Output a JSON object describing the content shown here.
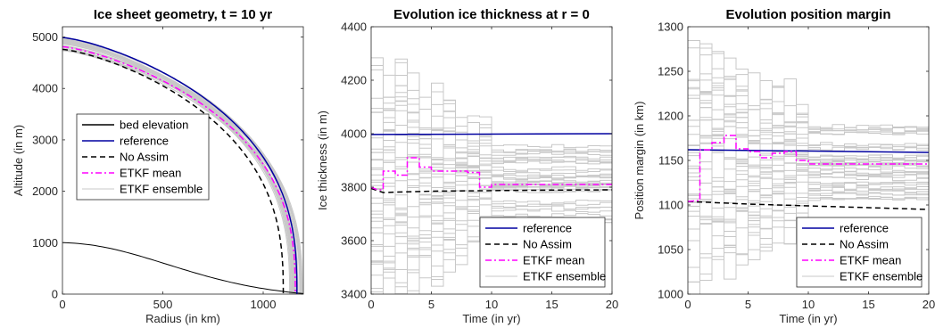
{
  "chart_data": [
    {
      "type": "line",
      "title": "Ice sheet geometry, t = 10 yr",
      "xlabel": "Radius (in km)",
      "ylabel": "Altitude (in m)",
      "xlim": [
        0,
        1200
      ],
      "ylim": [
        0,
        5200
      ],
      "xticks": [
        "0",
        "500",
        "1000"
      ],
      "yticks": [
        "0",
        "1000",
        "2000",
        "3000",
        "4000",
        "5000"
      ],
      "grid": false,
      "legend": {
        "placement": "center-left"
      },
      "series": [
        {
          "name": "bed elevation",
          "color": "#000000",
          "style": "solid",
          "kind": "bed",
          "H0": 1000,
          "R": 1200
        },
        {
          "name": "reference",
          "color": "#0000a0",
          "style": "solid",
          "kind": "profile",
          "H0": 4990,
          "R": 1168
        },
        {
          "name": "No Assim",
          "color": "#000000",
          "style": "dashed",
          "kind": "profile",
          "H0": 4760,
          "R": 1100
        },
        {
          "name": "ETKF mean",
          "color": "#ff00ff",
          "style": "dashdot",
          "kind": "profile",
          "H0": 4810,
          "R": 1160
        },
        {
          "name": "ETKF ensemble",
          "color": "#c8c8c8",
          "style": "solid",
          "kind": "ensemble",
          "H0_range": [
            4700,
            5000
          ],
          "R_range": [
            1130,
            1195
          ],
          "members": 30
        }
      ]
    },
    {
      "type": "line",
      "title": "Evolution ice thickness at r = 0",
      "xlabel": "Time (in yr)",
      "ylabel": "Ice thickness (in m)",
      "xlim": [
        0,
        20
      ],
      "ylim": [
        3400,
        4400
      ],
      "xticks": [
        "0",
        "5",
        "10",
        "15",
        "20"
      ],
      "yticks": [
        "3400",
        "3600",
        "3800",
        "4000",
        "4200",
        "4400"
      ],
      "grid": false,
      "legend": {
        "placement": "bottom-right"
      },
      "series": [
        {
          "name": "reference",
          "color": "#0000a0",
          "style": "solid",
          "x": [
            0,
            20
          ],
          "y": [
            3997,
            4000
          ]
        },
        {
          "name": "No Assim",
          "color": "#000000",
          "style": "dashed",
          "x": [
            0,
            1,
            5,
            10,
            15,
            20
          ],
          "y": [
            3795,
            3780,
            3785,
            3787,
            3789,
            3790
          ]
        },
        {
          "name": "ETKF mean",
          "color": "#ff00ff",
          "style": "dashdot",
          "x": [
            0,
            0.5,
            0.5,
            1,
            1,
            2,
            2,
            3,
            3,
            4,
            4,
            5,
            5,
            8,
            8,
            9,
            9,
            10,
            10,
            20
          ],
          "y": [
            3800,
            3790,
            3790,
            3790,
            3860,
            3860,
            3845,
            3845,
            3910,
            3910,
            3875,
            3875,
            3860,
            3860,
            3855,
            3855,
            3800,
            3800,
            3810,
            3810
          ]
        },
        {
          "name": "ETKF ensemble",
          "color": "#c8c8c8",
          "style": "solid",
          "kind": "ensemble",
          "center": 3810,
          "spread_start": 390,
          "spread_end": 150,
          "members": 40
        }
      ]
    },
    {
      "type": "line",
      "title": "Evolution position margin",
      "xlabel": "Time (in yr)",
      "ylabel": "Position margin (in km)",
      "xlim": [
        0,
        20
      ],
      "ylim": [
        1000,
        1300
      ],
      "xticks": [
        "0",
        "5",
        "10",
        "15",
        "20"
      ],
      "yticks": [
        "1000",
        "1050",
        "1100",
        "1150",
        "1200",
        "1250",
        "1300"
      ],
      "grid": false,
      "legend": {
        "placement": "bottom-right"
      },
      "series": [
        {
          "name": "reference",
          "color": "#0000a0",
          "style": "solid",
          "x": [
            0,
            20
          ],
          "y": [
            1162,
            1159
          ]
        },
        {
          "name": "No Assim",
          "color": "#000000",
          "style": "dashed",
          "x": [
            0,
            5,
            10,
            15,
            20
          ],
          "y": [
            1104,
            1101,
            1099,
            1097,
            1095
          ]
        },
        {
          "name": "ETKF mean",
          "color": "#ff00ff",
          "style": "dashdot",
          "x": [
            0,
            1,
            1,
            2,
            2,
            3,
            3,
            4,
            4,
            5,
            5,
            6,
            6,
            7,
            7,
            8,
            8,
            9,
            9,
            10,
            10,
            20
          ],
          "y": [
            1104,
            1105,
            1162,
            1162,
            1170,
            1170,
            1178,
            1178,
            1163,
            1163,
            1160,
            1160,
            1153,
            1153,
            1158,
            1158,
            1160,
            1160,
            1150,
            1150,
            1146,
            1146
          ]
        },
        {
          "name": "ETKF ensemble",
          "color": "#c8c8c8",
          "style": "solid",
          "kind": "ensemble",
          "center": 1148,
          "spread_start": 120,
          "spread_end": 45,
          "members": 40
        }
      ]
    }
  ]
}
